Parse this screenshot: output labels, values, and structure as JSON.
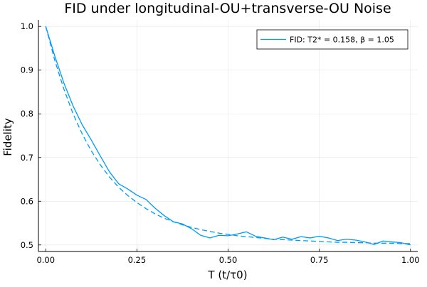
{
  "chart_data": {
    "type": "line",
    "title": "FID under longitudinal-OU+transverse-OU Noise",
    "xlabel": "T (t/τ0)",
    "ylabel": "Fidelity",
    "xlim": [
      -0.02,
      1.02
    ],
    "ylim": [
      0.485,
      1.015
    ],
    "x_ticks": [
      0.0,
      0.25,
      0.5,
      0.75,
      1.0
    ],
    "x_tick_labels": [
      "0.00",
      "0.25",
      "0.50",
      "0.75",
      "1.00"
    ],
    "y_ticks": [
      0.5,
      0.6,
      0.7,
      0.8,
      0.9,
      1.0
    ],
    "y_tick_labels": [
      "0.5",
      "0.6",
      "0.7",
      "0.8",
      "0.9",
      "1.0"
    ],
    "grid": true,
    "legend_position": "top-right",
    "series_color": "#009af9",
    "series": [
      {
        "name": "FID: T2* = 0.158, β = 1.05",
        "style": "solid",
        "x": [
          0.0,
          0.025,
          0.05,
          0.075,
          0.1,
          0.125,
          0.15,
          0.175,
          0.2,
          0.225,
          0.25,
          0.275,
          0.3,
          0.325,
          0.35,
          0.375,
          0.4,
          0.425,
          0.45,
          0.475,
          0.5,
          0.525,
          0.55,
          0.575,
          0.6,
          0.625,
          0.65,
          0.675,
          0.7,
          0.725,
          0.75,
          0.775,
          0.8,
          0.825,
          0.85,
          0.875,
          0.9,
          0.925,
          0.95,
          0.975,
          1.0
        ],
        "y": [
          1.0,
          0.932,
          0.87,
          0.818,
          0.775,
          0.74,
          0.703,
          0.667,
          0.64,
          0.628,
          0.614,
          0.604,
          0.584,
          0.567,
          0.553,
          0.548,
          0.537,
          0.522,
          0.516,
          0.522,
          0.521,
          0.525,
          0.53,
          0.52,
          0.516,
          0.512,
          0.518,
          0.513,
          0.519,
          0.516,
          0.52,
          0.516,
          0.51,
          0.513,
          0.511,
          0.507,
          0.501,
          0.509,
          0.507,
          0.505,
          0.5
        ]
      },
      {
        "name": "",
        "style": "dashed",
        "x": [
          0.0,
          0.025,
          0.05,
          0.075,
          0.1,
          0.125,
          0.15,
          0.175,
          0.2,
          0.225,
          0.25,
          0.275,
          0.3,
          0.325,
          0.35,
          0.375,
          0.4,
          0.425,
          0.45,
          0.475,
          0.5,
          0.525,
          0.55,
          0.575,
          0.6,
          0.625,
          0.65,
          0.675,
          0.7,
          0.725,
          0.75,
          0.775,
          0.8,
          0.825,
          0.85,
          0.875,
          0.9,
          0.925,
          0.95,
          0.975,
          1.0
        ],
        "y": [
          1.0,
          0.922,
          0.856,
          0.8,
          0.754,
          0.715,
          0.683,
          0.655,
          0.632,
          0.613,
          0.597,
          0.583,
          0.571,
          0.561,
          0.553,
          0.546,
          0.54,
          0.535,
          0.531,
          0.527,
          0.524,
          0.521,
          0.519,
          0.517,
          0.515,
          0.513,
          0.512,
          0.511,
          0.51,
          0.509,
          0.508,
          0.507,
          0.506,
          0.506,
          0.505,
          0.505,
          0.504,
          0.504,
          0.504,
          0.503,
          0.503
        ]
      }
    ]
  }
}
